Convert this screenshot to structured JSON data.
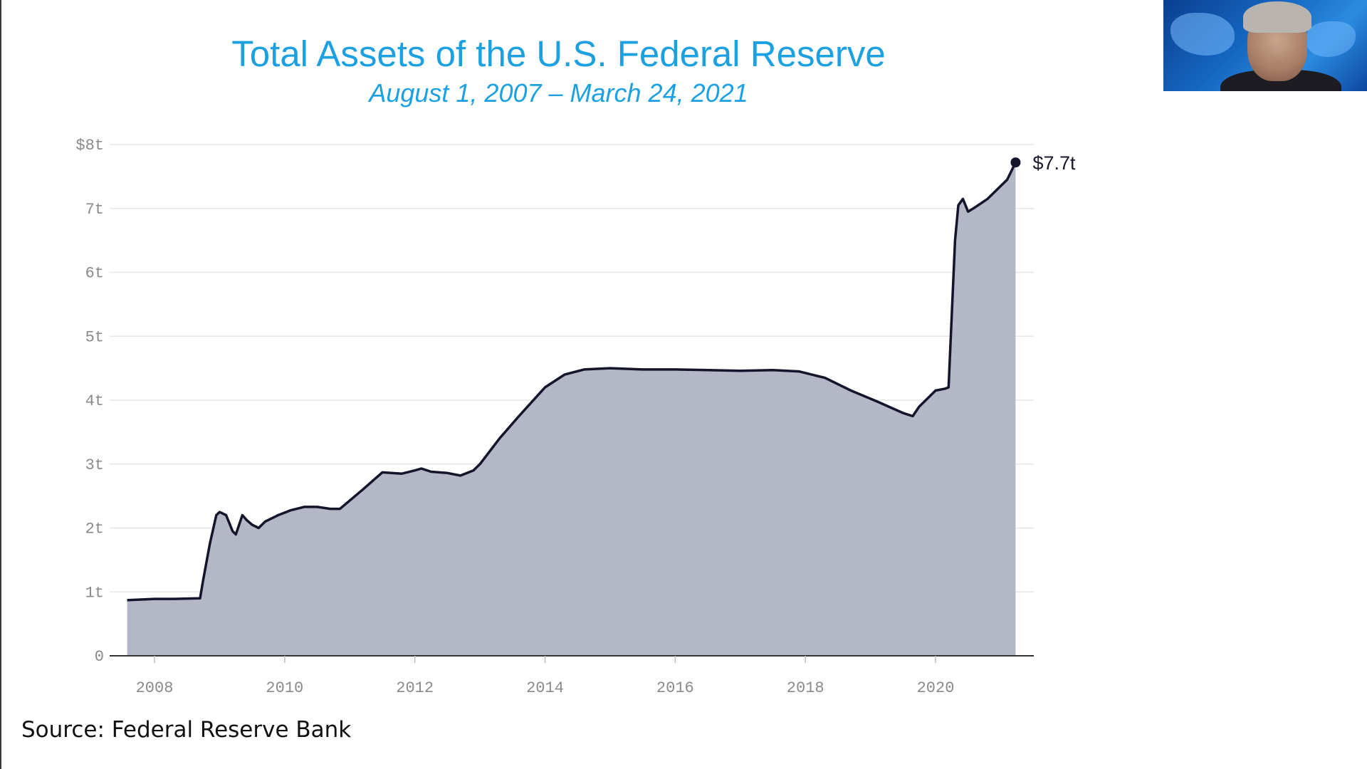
{
  "slide": {
    "title": "Total Assets of the U.S. Federal Reserve",
    "subtitle": "August 1, 2007 – March 24, 2021",
    "source": "Source: Federal Reserve Bank"
  },
  "colors": {
    "title": "#1ba1e2",
    "area_fill": "#b4b7c6",
    "line": "#14142b",
    "grid": "#e6e6e6",
    "tick_text": "#8a8a8a"
  },
  "webcam": {
    "icon": "presenter-video-thumbnail"
  },
  "chart_data": {
    "type": "area",
    "title": "",
    "xlabel": "",
    "ylabel": "",
    "grid": true,
    "xlim": [
      2007.58,
      2021.23
    ],
    "ylim": [
      0,
      8
    ],
    "y_ticks": [
      0,
      1,
      2,
      3,
      4,
      5,
      6,
      7,
      8
    ],
    "y_tick_labels": [
      "0",
      "1t",
      "2t",
      "3t",
      "4t",
      "5t",
      "6t",
      "7t",
      "$8t"
    ],
    "x_ticks": [
      2008,
      2010,
      2012,
      2014,
      2016,
      2018,
      2020
    ],
    "x_tick_labels": [
      "2008",
      "2010",
      "2012",
      "2014",
      "2016",
      "2018",
      "2020"
    ],
    "end_label": "$7.7t",
    "series": [
      {
        "x": [
          2007.58,
          2008.0,
          2008.3,
          2008.7,
          2008.75,
          2008.85,
          2008.95,
          2009.0,
          2009.1,
          2009.2,
          2009.25,
          2009.35,
          2009.42,
          2009.5,
          2009.6,
          2009.7,
          2009.9,
          2010.1,
          2010.3,
          2010.5,
          2010.7,
          2010.85,
          2011.0,
          2011.2,
          2011.5,
          2011.8,
          2012.0,
          2012.1,
          2012.25,
          2012.5,
          2012.7,
          2012.9,
          2013.0,
          2013.3,
          2013.6,
          2014.0,
          2014.3,
          2014.6,
          2015.0,
          2015.5,
          2016.0,
          2016.5,
          2017.0,
          2017.5,
          2017.9,
          2018.3,
          2018.7,
          2019.1,
          2019.5,
          2019.65,
          2019.75,
          2019.9,
          2020.0,
          2020.15,
          2020.2,
          2020.3,
          2020.35,
          2020.42,
          2020.5,
          2020.58,
          2020.8,
          2021.0,
          2021.1,
          2021.23
        ],
        "y": [
          0.87,
          0.89,
          0.89,
          0.9,
          1.2,
          1.75,
          2.2,
          2.25,
          2.2,
          1.95,
          1.9,
          2.2,
          2.12,
          2.05,
          2.0,
          2.1,
          2.2,
          2.28,
          2.33,
          2.33,
          2.3,
          2.3,
          2.43,
          2.6,
          2.87,
          2.85,
          2.9,
          2.93,
          2.88,
          2.86,
          2.82,
          2.9,
          3.0,
          3.4,
          3.75,
          4.2,
          4.4,
          4.48,
          4.5,
          4.48,
          4.48,
          4.47,
          4.46,
          4.47,
          4.45,
          4.35,
          4.15,
          3.98,
          3.8,
          3.75,
          3.9,
          4.05,
          4.15,
          4.18,
          4.2,
          6.5,
          7.05,
          7.15,
          6.95,
          7.0,
          7.15,
          7.35,
          7.45,
          7.72
        ]
      }
    ]
  }
}
